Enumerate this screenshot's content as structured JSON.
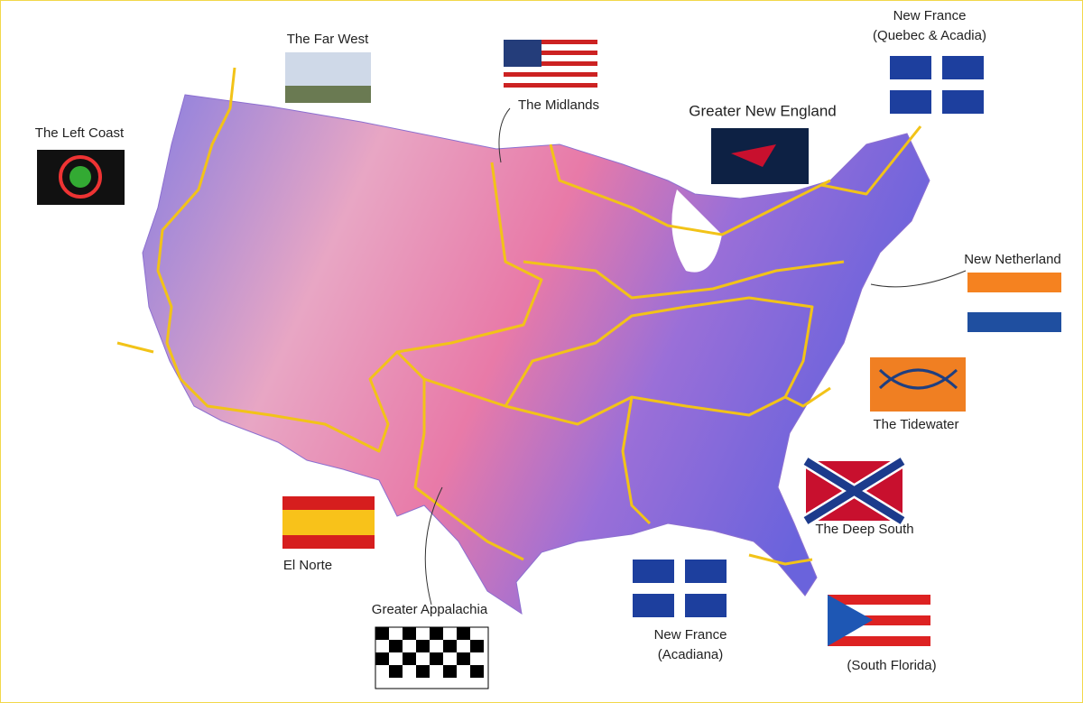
{
  "regions": [
    {
      "label": [
        "The Far West"
      ]
    },
    {
      "label": [
        "The Midlands"
      ]
    },
    {
      "label": [
        "Greater New England"
      ]
    },
    {
      "label": [
        "New France",
        "(Quebec & Acadia)"
      ]
    },
    {
      "label": [
        "The Left Coast"
      ]
    },
    {
      "label": [
        "New Netherland"
      ]
    },
    {
      "label": [
        "The Tidewater"
      ]
    },
    {
      "label": [
        "The Deep South"
      ]
    },
    {
      "label": [
        "El Norte"
      ]
    },
    {
      "label": [
        "Greater Appalachia"
      ]
    },
    {
      "label": [
        "New France",
        "(Acadiana)"
      ]
    },
    {
      "label": [
        "(South Florida)"
      ]
    }
  ]
}
